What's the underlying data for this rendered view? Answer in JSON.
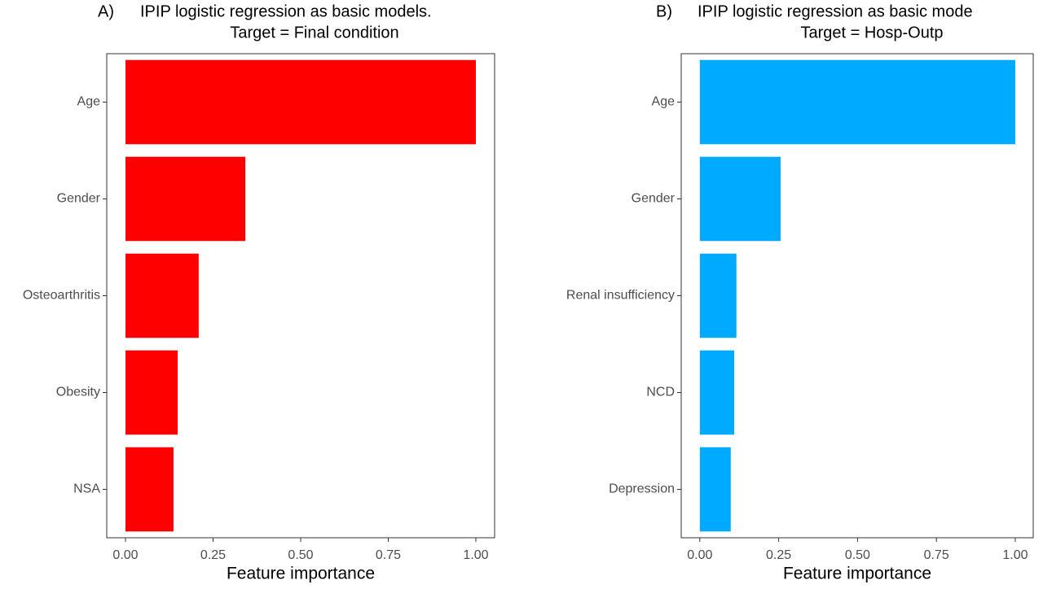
{
  "chart_data": [
    {
      "type": "barh",
      "panel": "A)",
      "title": "IPIP logistic regression as basic models.",
      "subtitle": "Target = Final condition",
      "categories": [
        "Age",
        "Gender",
        "Osteoarthritis",
        "Obesity",
        "NSA"
      ],
      "values": [
        1.0,
        0.342,
        0.209,
        0.149,
        0.137
      ],
      "color": "#ff0000",
      "xlabel": "Feature importance",
      "xlim": [
        -0.0535,
        1.0535
      ],
      "xticks": [
        {
          "value": 0,
          "label": "0.00"
        },
        {
          "value": 0.25,
          "label": "0.25"
        },
        {
          "value": 0.5,
          "label": "0.50"
        },
        {
          "value": 0.75,
          "label": "0.75"
        },
        {
          "value": 1,
          "label": "1.00"
        }
      ],
      "grid": false
    },
    {
      "type": "barh",
      "panel": "B)",
      "title": "IPIP logistic regression as basic mode",
      "subtitle": "Target = Hosp-Outp",
      "categories": [
        "Age",
        "Gender",
        "Renal insufficiency",
        "NCD",
        "Depression"
      ],
      "values": [
        1.0,
        0.256,
        0.116,
        0.109,
        0.098
      ],
      "color": "#00aaff",
      "xlabel": "Feature importance",
      "xlim": [
        -0.059,
        1.057
      ],
      "xticks": [
        {
          "value": 0,
          "label": "0.00"
        },
        {
          "value": 0.25,
          "label": "0.25"
        },
        {
          "value": 0.5,
          "label": "0.50"
        },
        {
          "value": 0.75,
          "label": "0.75"
        },
        {
          "value": 1,
          "label": "1.00"
        }
      ],
      "grid": false
    }
  ]
}
